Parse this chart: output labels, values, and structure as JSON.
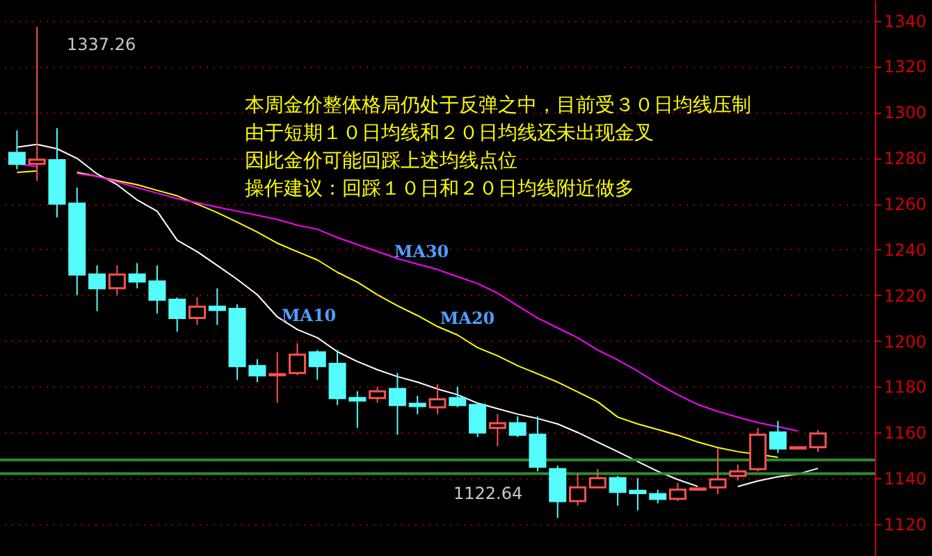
{
  "chart_data": {
    "type": "candlestick",
    "categories": [
      null,
      null,
      null,
      null,
      null,
      null,
      null,
      null,
      null,
      null,
      null,
      null,
      null,
      null,
      null,
      null,
      null,
      null,
      null,
      null,
      null,
      null,
      null,
      null,
      null,
      null,
      null,
      null,
      null,
      null,
      null,
      null,
      null,
      null,
      null,
      null,
      null,
      null,
      null,
      null,
      null
    ],
    "ohlc": [
      [
        1282.2,
        1292,
        1275,
        1277.4
      ],
      [
        1277.4,
        1337.26,
        1270,
        1279.2
      ],
      [
        1279,
        1293,
        1254,
        1260
      ],
      [
        1260,
        1267,
        1220,
        1229
      ],
      [
        1229,
        1233,
        1213,
        1223
      ],
      [
        1223,
        1233,
        1220,
        1229
      ],
      [
        1229,
        1234,
        1223,
        1226
      ],
      [
        1226,
        1233,
        1212,
        1218
      ],
      [
        1218,
        1219,
        1204,
        1210
      ],
      [
        1210,
        1219,
        1207,
        1215
      ],
      [
        1215,
        1223,
        1207,
        1213.5
      ],
      [
        1214,
        1216,
        1183,
        1189
      ],
      [
        1189,
        1192,
        1182,
        1185
      ],
      [
        1185,
        1195,
        1173,
        1185.5
      ],
      [
        1186,
        1199,
        1185,
        1194
      ],
      [
        1195,
        1196,
        1183,
        1189
      ],
      [
        1190,
        1196,
        1172,
        1175
      ],
      [
        1175,
        1178,
        1162,
        1174
      ],
      [
        1175,
        1180,
        1173,
        1178
      ],
      [
        1179,
        1186,
        1159,
        1172
      ],
      [
        1172.5,
        1176,
        1168,
        1171.5
      ],
      [
        1171,
        1181,
        1168,
        1174.5
      ],
      [
        1175,
        1180,
        1171,
        1172
      ],
      [
        1172,
        1173,
        1158,
        1160
      ],
      [
        1162,
        1168,
        1154,
        1164
      ],
      [
        1164,
        1167,
        1158,
        1159
      ],
      [
        1159,
        1167,
        1143,
        1145
      ],
      [
        1144,
        1145.5,
        1122.64,
        1130
      ],
      [
        1130,
        1142,
        1128,
        1136
      ],
      [
        1136,
        1144,
        1136,
        1140
      ],
      [
        1140,
        1141,
        1128,
        1134
      ],
      [
        1134.5,
        1140,
        1126,
        1133.5
      ],
      [
        1133,
        1135,
        1129,
        1131
      ],
      [
        1131,
        1138,
        1130,
        1135
      ],
      [
        1135,
        1135.5,
        1135,
        1135.5
      ],
      [
        1136,
        1153,
        1133,
        1139.5
      ],
      [
        1141,
        1146,
        1139,
        1143
      ],
      [
        1144,
        1162,
        1143,
        1159
      ],
      [
        1160,
        1165,
        1151,
        1153
      ],
      [
        1153,
        1153.5,
        1153,
        1153.5
      ],
      [
        1153.5,
        1161,
        1151.5,
        1159.5
      ]
    ],
    "series": [
      {
        "name": "MA10",
        "type": "line",
        "color": "#ffffff",
        "values": [
          1284.7,
          1285.9,
          1284,
          1279.8,
          1273,
          1268.3,
          1261.6,
          1256.7,
          1244,
          1239,
          1233,
          1226.9,
          1220.2,
          1210.5,
          1205,
          1201.4,
          1195.3,
          1191,
          1187.4,
          1184.4,
          1182,
          1179,
          1176.5,
          1172.8,
          1170.4,
          1168,
          1166.1,
          1163.7,
          1160,
          1155.8,
          1151.6,
          1147.3,
          1143,
          1139.4,
          1136.4,
          null,
          1136.4,
          1138.8,
          1140.6,
          1141.8,
          1144.3
        ]
      },
      {
        "name": "MA20",
        "type": "line",
        "color": "#ffff00",
        "values": [
          1273.7,
          1274.3,
          null,
          1273.7,
          1271.9,
          1270,
          1268.3,
          1265.8,
          1263.4,
          1259.8,
          1256.1,
          1251.9,
          1247.6,
          1242.7,
          1239,
          1235.4,
          1230,
          1225.7,
          1220.2,
          1215.4,
          1211.1,
          1206.3,
          1202.6,
          1197.1,
          1193.5,
          1189.2,
          1185.6,
          1182,
          1177.7,
          1173.4,
          1166.7,
          1163.7,
          1161.3,
          1158.8,
          1155.8,
          1153.4,
          1151.6,
          1150.4,
          1149.1,
          null,
          null
        ]
      },
      {
        "name": "MA30",
        "type": "line",
        "color": "#ff00ff",
        "values": [
          1277.4,
          1276.2,
          null,
          1273.1,
          1271.9,
          1269.5,
          1267,
          1264.6,
          1262.2,
          1260.4,
          1258.5,
          1256.7,
          1254.9,
          1253.1,
          1250.6,
          1248.8,
          1245.2,
          1242.1,
          1239.1,
          1236,
          1233.6,
          1231.2,
          1228.1,
          1225.1,
          1220.9,
          1215.4,
          1210,
          1205.7,
          1201.4,
          1196,
          1191.7,
          1186.8,
          1181.3,
          1176.5,
          1172.2,
          1169.2,
          1166.7,
          1164.3,
          1162.5,
          1160.7,
          null
        ]
      }
    ],
    "ylim": [
      1106,
      1349
    ],
    "yticks": [
      1120,
      1140,
      1160,
      1180,
      1200,
      1220,
      1240,
      1260,
      1280,
      1300,
      1320,
      1340
    ],
    "grid": "y",
    "tick_labels": "y",
    "ref_lines": [
      {
        "axis": "y",
        "value": 1148,
        "color": "#2e8b2e"
      },
      {
        "axis": "y",
        "value": 1142,
        "color": "#2e8b2e"
      }
    ],
    "annotations": [
      "本周金价整体格局仍处于反弹之中，目前受３０日均线压制",
      "由于短期１０日均线和２０日均线还未出现金叉",
      "因此金价可能回踩上述均线点位",
      "操作建议：回踩１０日和２０日均线附近做多",
      "1337.26",
      "1122.64"
    ]
  }
}
